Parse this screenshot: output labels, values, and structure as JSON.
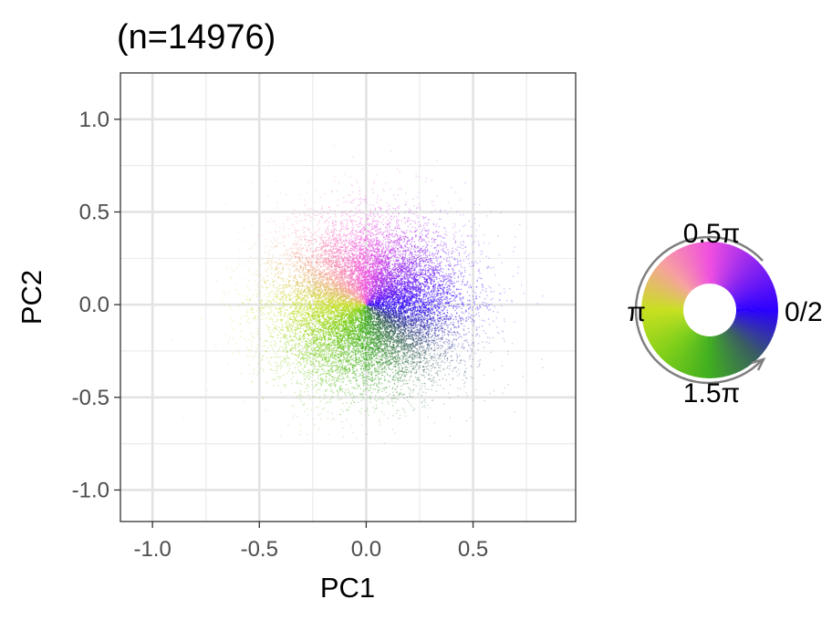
{
  "chart_data": {
    "type": "scatter",
    "title": "(n=14976)",
    "xlabel": "PC1",
    "ylabel": "PC2",
    "xlim": [
      -1.15,
      0.98
    ],
    "ylim": [
      -1.17,
      1.25
    ],
    "x_ticks": [
      -1.0,
      -0.5,
      0.0,
      0.5
    ],
    "x_tick_labels": [
      "-1.0",
      "-0.5",
      "0.0",
      "0.5"
    ],
    "y_ticks": [
      -1.0,
      -0.5,
      0.0,
      0.5,
      1.0
    ],
    "y_tick_labels": [
      "-1.0",
      "-0.5",
      "0.0",
      "0.5",
      "1.0"
    ],
    "grid": true,
    "point_count": 14976,
    "color_encoding": "hue by polar angle of (PC1, PC2)",
    "point_distribution": {
      "center": [
        0.0,
        0.0
      ],
      "spread_pc1": 0.22,
      "spread_pc2": 0.22,
      "max_radius": 1.05
    },
    "angle_colors": [
      {
        "angle": "0",
        "color": "#2b00ff"
      },
      {
        "angle": "0.25π",
        "color": "#8a24f0"
      },
      {
        "angle": "0.5π",
        "color": "#f04ee0"
      },
      {
        "angle": "0.75π",
        "color": "#f7a0a0"
      },
      {
        "angle": "π",
        "color": "#c8e020"
      },
      {
        "angle": "1.25π",
        "color": "#7fcf1a"
      },
      {
        "angle": "1.5π",
        "color": "#3fae1f"
      },
      {
        "angle": "1.75π",
        "color": "#3a5e60"
      }
    ],
    "legend": {
      "type": "color-wheel",
      "placement": "right",
      "labels": {
        "right": "0/2",
        "top": "0.5π",
        "left": "π",
        "bottom": "1.5π"
      }
    }
  }
}
